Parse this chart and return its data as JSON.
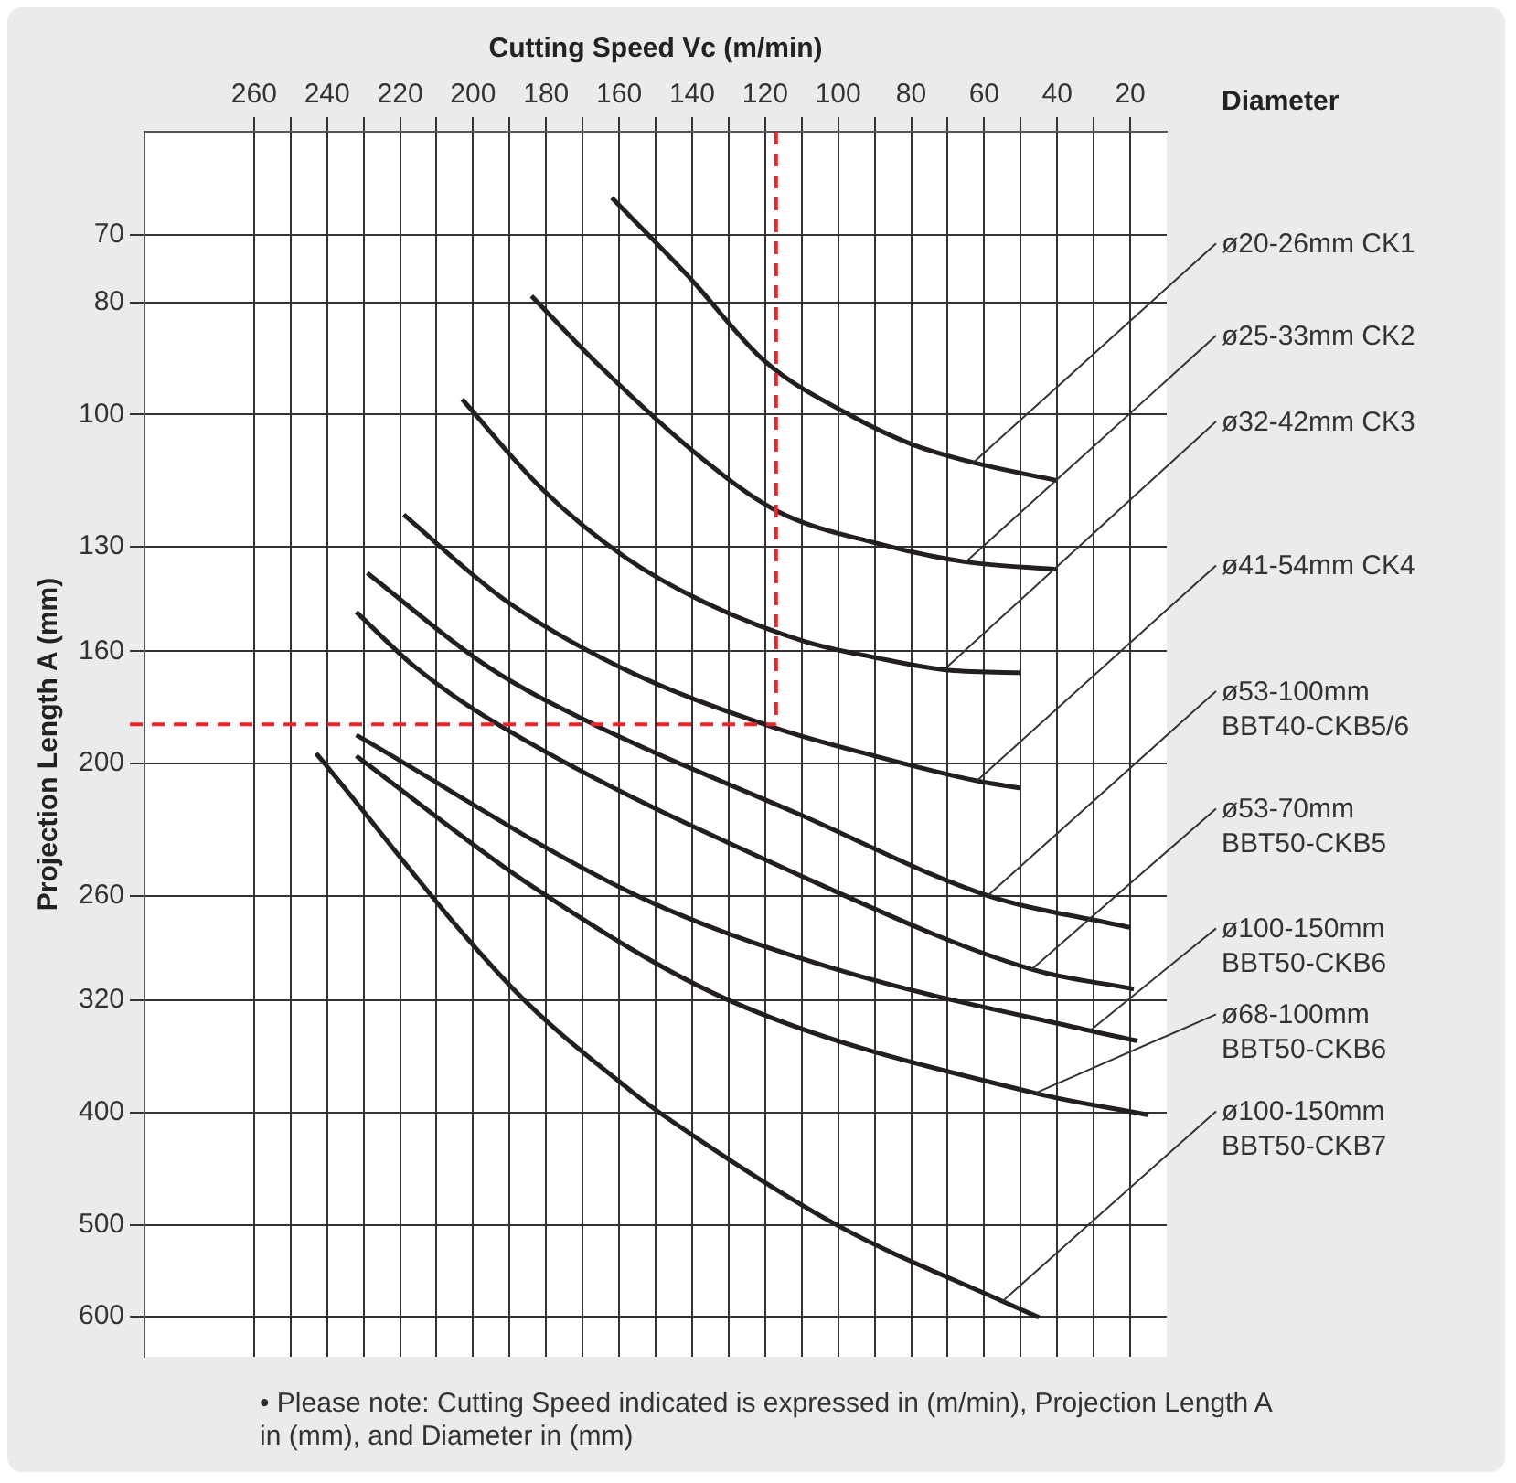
{
  "chart_data": {
    "type": "line",
    "xlabel": "Cutting Speed Vc (m/min)",
    "ylabel": "Projection Length A (mm)",
    "legend_title": "Diameter",
    "xlim": [
      290,
      10
    ],
    "xticks": [
      {
        "value": 260,
        "label": "260"
      },
      {
        "value": 250,
        "label": null
      },
      {
        "value": 240,
        "label": "240"
      },
      {
        "value": 230,
        "label": null
      },
      {
        "value": 220,
        "label": "220"
      },
      {
        "value": 210,
        "label": null
      },
      {
        "value": 200,
        "label": "200"
      },
      {
        "value": 190,
        "label": null
      },
      {
        "value": 180,
        "label": "180"
      },
      {
        "value": 170,
        "label": null
      },
      {
        "value": 160,
        "label": "160"
      },
      {
        "value": 150,
        "label": null
      },
      {
        "value": 140,
        "label": "140"
      },
      {
        "value": 130,
        "label": null
      },
      {
        "value": 120,
        "label": "120"
      },
      {
        "value": 110,
        "label": null
      },
      {
        "value": 100,
        "label": "100"
      },
      {
        "value": 90,
        "label": null
      },
      {
        "value": 80,
        "label": "80"
      },
      {
        "value": 70,
        "label": null
      },
      {
        "value": 60,
        "label": "60"
      },
      {
        "value": 50,
        "label": null
      },
      {
        "value": 40,
        "label": "40"
      },
      {
        "value": 30,
        "label": null
      },
      {
        "value": 20,
        "label": "20"
      }
    ],
    "ylim": [
      650,
      57
    ],
    "yticks": [
      70,
      80,
      100,
      130,
      160,
      200,
      260,
      320,
      400,
      500,
      600
    ],
    "log": "y",
    "grid": true,
    "marker": "none",
    "line_style": "solid",
    "series": [
      {
        "name": "ø20-26mm CK1",
        "color": "#231f20",
        "x": [
          162,
          141,
          120,
          97,
          80,
          63,
          40
        ],
        "values": [
          65,
          76,
          90,
          100,
          106,
          110,
          114
        ]
      },
      {
        "name": "ø25-33mm CK2",
        "color": "#231f20",
        "x": [
          184,
          165,
          139,
          117,
          90,
          65,
          40
        ],
        "values": [
          79,
          91,
          108,
          121,
          129,
          134,
          136
        ]
      },
      {
        "name": "ø32-42mm CK3",
        "color": "#231f20",
        "x": [
          203,
          181,
          158,
          135,
          109,
          90,
          71,
          50
        ],
        "values": [
          97,
          116,
          133,
          146,
          157,
          162,
          166,
          167
        ]
      },
      {
        "name": "ø41-54mm CK4",
        "color": "#231f20",
        "x": [
          219,
          192,
          160,
          118,
          90,
          62,
          50
        ],
        "values": [
          122,
          144,
          165,
          186,
          197,
          207,
          210
        ]
      },
      {
        "name": "ø53-100mm BBT40-CKB5/6",
        "color": "#231f20",
        "x": [
          229,
          196,
          167,
          111,
          59,
          20
        ],
        "values": [
          137,
          165,
          185,
          221,
          260,
          277
        ]
      },
      {
        "name": "ø53-70mm BBT50-CKB5",
        "color": "#231f20",
        "x": [
          232,
          216,
          192,
          109,
          47,
          19
        ],
        "values": [
          148,
          165,
          186,
          251,
          301,
          313
        ]
      },
      {
        "name": "ø100-150mm BBT50-CKB6",
        "color": "#231f20",
        "x": [
          232,
          154,
          99,
          31,
          18
        ],
        "values": [
          189,
          261,
          302,
          340,
          347
        ]
      },
      {
        "name": "ø68-100mm BBT50-CKB6",
        "color": "#231f20",
        "x": [
          232,
          184,
          130,
          46,
          15
        ],
        "values": [
          197,
          255,
          320,
          385,
          402
        ]
      },
      {
        "name": "ø100-150mm BBT50-CKB7",
        "color": "#231f20",
        "x": [
          243,
          189,
          156,
          149,
          100,
          55,
          45
        ],
        "values": [
          196,
          313,
          385,
          400,
          501,
          582,
          601
        ]
      }
    ],
    "ref_lines": [
      {
        "axis": "x",
        "value": 117,
        "color": "#e8262a",
        "line_style": "dashed"
      },
      {
        "axis": "y",
        "value": 185,
        "color": "#e8262a",
        "line_style": "dashed"
      }
    ],
    "annotations": [
      "• Please note: Cutting Speed indicated is expressed in (m/min), Projection Length A in (mm), and Diameter in (mm)"
    ]
  }
}
